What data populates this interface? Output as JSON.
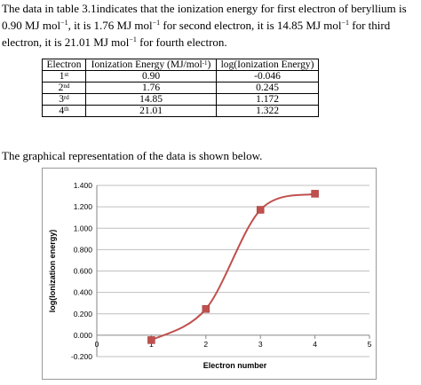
{
  "paragraph": {
    "line1": "The data in table 3.1indicates that the ionization energy for first electron of beryllium is",
    "line2_a": "0.90 MJ mol",
    "line2_b": ", it is 1.76 MJ mol",
    "line2_c": " for second electron, it is 14.85 MJ mol",
    "line2_d": " for third",
    "line3_a": "electron, it is 21.01 MJ mol",
    "line3_b": " for fourth electron.",
    "unit_exp": "−1"
  },
  "table": {
    "headers": [
      "Electron",
      "Ionization Energy (MJ/mol",
      "log(Ionization Energy)"
    ],
    "header_exp": "-1",
    "header_close": ")",
    "rows": [
      {
        "num": "1",
        "suffix": "st",
        "ie": "0.90",
        "log": "-0.046"
      },
      {
        "num": "2",
        "suffix": "nd",
        "ie": "1.76",
        "log": "0.245"
      },
      {
        "num": "3",
        "suffix": "rd",
        "ie": "14.85",
        "log": "1.172"
      },
      {
        "num": "4",
        "suffix": "th",
        "ie": "21.01",
        "log": "1.322"
      }
    ]
  },
  "caption": "The graphical representation of the data is shown below.",
  "colors": {
    "series": "#c0504d",
    "grid": "#bfbfbf",
    "axis": "#868686"
  },
  "chart_data": {
    "type": "line",
    "x": [
      1,
      2,
      3,
      4
    ],
    "y": [
      -0.046,
      0.245,
      1.172,
      1.322
    ],
    "xlabel": "Electron number",
    "ylabel": "log(Ionization energy)",
    "xlim": [
      0,
      5
    ],
    "ylim": [
      -0.2,
      1.4
    ],
    "xticks": [
      "0",
      "1",
      "2",
      "3",
      "4",
      "5"
    ],
    "yticks": [
      "1.400",
      "1.200",
      "1.000",
      "0.800",
      "0.600",
      "0.400",
      "0.200",
      "0.000",
      "-0.200"
    ],
    "ytick_values": [
      1.4,
      1.2,
      1.0,
      0.8,
      0.6,
      0.4,
      0.2,
      0.0,
      -0.2
    ],
    "grid": true,
    "smooth": true,
    "marker": "square"
  }
}
